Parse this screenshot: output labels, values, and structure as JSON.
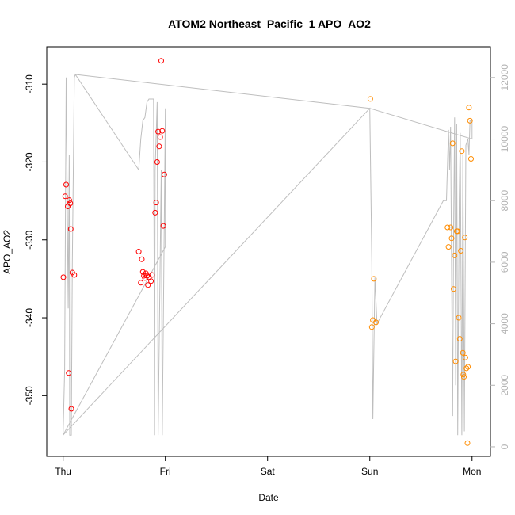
{
  "chart_data": {
    "type": "scatter",
    "title": "ATOM2 Northeast_Pacific_1 APO_AO2",
    "xlabel": "Date",
    "ylabel": "APO_AO2",
    "x_ticks": [
      "Thu",
      "Fri",
      "Sat",
      "Sun",
      "Mon"
    ],
    "x_tick_positions": [
      0,
      1,
      2,
      3,
      4
    ],
    "xlim": [
      -0.16,
      4.18
    ],
    "ylim": [
      -357.8,
      -305.2
    ],
    "y_ticks": [
      -350,
      -340,
      -330,
      -320,
      -310
    ],
    "y2_label": "",
    "y2_ticks": [
      0,
      2000,
      4000,
      6000,
      8000,
      10000,
      12000
    ],
    "y2lim": [
      -310,
      13000
    ],
    "grid": false,
    "colors": {
      "red": "#ff0000",
      "orange": "#ff8c00",
      "line": "#bebebe",
      "axis": "#000000",
      "right_axis": "#b3b3b3"
    },
    "series": [
      {
        "color": "#ff0000",
        "points": [
          [
            0.003,
            -334.8
          ],
          [
            0.02,
            -324.4
          ],
          [
            0.03,
            -322.9
          ],
          [
            0.045,
            -325.7
          ],
          [
            0.055,
            -347.1
          ],
          [
            0.06,
            -324.9
          ],
          [
            0.07,
            -325.3
          ],
          [
            0.075,
            -328.6
          ],
          [
            0.08,
            -351.7
          ],
          [
            0.09,
            -334.2
          ],
          [
            0.11,
            -334.5
          ],
          [
            0.74,
            -331.5
          ],
          [
            0.76,
            -335.5
          ],
          [
            0.77,
            -332.5
          ],
          [
            0.78,
            -334.1
          ],
          [
            0.79,
            -334.6
          ],
          [
            0.8,
            -334.9
          ],
          [
            0.81,
            -334.3
          ],
          [
            0.82,
            -334.6
          ],
          [
            0.83,
            -335.8
          ],
          [
            0.84,
            -334.8
          ],
          [
            0.86,
            -335.3
          ],
          [
            0.87,
            -334.5
          ],
          [
            0.9,
            -326.5
          ],
          [
            0.91,
            -325.2
          ],
          [
            0.92,
            -320.0
          ],
          [
            0.93,
            -316.1
          ],
          [
            0.94,
            -318.0
          ],
          [
            0.95,
            -316.8
          ],
          [
            0.96,
            -307.0
          ],
          [
            0.97,
            -316.0
          ],
          [
            0.98,
            -328.2
          ],
          [
            0.99,
            -321.6
          ]
        ]
      },
      {
        "color": "#ff8c00",
        "points": [
          [
            3.005,
            -311.9
          ],
          [
            3.02,
            -341.2
          ],
          [
            3.03,
            -340.3
          ],
          [
            3.04,
            -335.0
          ],
          [
            3.06,
            -340.6
          ],
          [
            3.76,
            -328.4
          ],
          [
            3.77,
            -330.9
          ],
          [
            3.79,
            -328.4
          ],
          [
            3.8,
            -329.8
          ],
          [
            3.81,
            -317.6
          ],
          [
            3.82,
            -336.3
          ],
          [
            3.83,
            -332.0
          ],
          [
            3.84,
            -345.6
          ],
          [
            3.85,
            -328.9
          ],
          [
            3.86,
            -328.9
          ],
          [
            3.87,
            -340.0
          ],
          [
            3.88,
            -342.7
          ],
          [
            3.89,
            -331.4
          ],
          [
            3.9,
            -318.6
          ],
          [
            3.91,
            -344.5
          ],
          [
            3.915,
            -347.3
          ],
          [
            3.92,
            -347.6
          ],
          [
            3.93,
            -329.7
          ],
          [
            3.935,
            -345.1
          ],
          [
            3.945,
            -346.5
          ],
          [
            3.955,
            -356.1
          ],
          [
            3.96,
            -346.3
          ],
          [
            3.97,
            -313.0
          ],
          [
            3.98,
            -314.7
          ],
          [
            3.99,
            -319.6
          ]
        ]
      }
    ],
    "line_series": {
      "color": "#bebebe",
      "axis": "right",
      "points": [
        [
          0.0,
          380
        ],
        [
          0.015,
          2500
        ],
        [
          0.03,
          12000
        ],
        [
          0.05,
          4500
        ],
        [
          0.06,
          9500
        ],
        [
          0.065,
          380
        ],
        [
          0.08,
          380
        ],
        [
          0.09,
          6000
        ],
        [
          0.11,
          12000
        ],
        [
          0.12,
          12100
        ],
        [
          0.74,
          9000
        ],
        [
          0.76,
          10000
        ],
        [
          0.78,
          10600
        ],
        [
          0.8,
          10700
        ],
        [
          0.82,
          11200
        ],
        [
          0.84,
          11300
        ],
        [
          0.86,
          11300
        ],
        [
          0.88,
          11300
        ],
        [
          0.885,
          11300
        ],
        [
          0.89,
          6000
        ],
        [
          0.895,
          380
        ],
        [
          0.9,
          9000
        ],
        [
          0.92,
          11200
        ],
        [
          0.93,
          380
        ],
        [
          0.96,
          9000
        ],
        [
          0.97,
          380
        ],
        [
          1.0,
          11000
        ],
        [
          1.0,
          6500
        ],
        [
          0.0,
          380
        ],
        [
          3.0,
          11000
        ],
        [
          3.02,
          6000
        ],
        [
          3.03,
          900
        ],
        [
          3.05,
          5500
        ],
        [
          3.07,
          4000
        ],
        [
          3.72,
          8000
        ],
        [
          3.75,
          8000
        ],
        [
          3.77,
          10300
        ],
        [
          3.78,
          9000
        ],
        [
          3.79,
          10400
        ],
        [
          3.81,
          1000
        ],
        [
          3.82,
          7000
        ],
        [
          3.83,
          10700
        ],
        [
          3.84,
          2000
        ],
        [
          3.85,
          10500
        ],
        [
          3.86,
          380
        ],
        [
          3.875,
          8000
        ],
        [
          3.885,
          10200
        ],
        [
          3.9,
          380
        ],
        [
          3.91,
          9500
        ],
        [
          3.925,
          500
        ],
        [
          3.94,
          9800
        ],
        [
          3.96,
          10000
        ],
        [
          3.97,
          9500
        ],
        [
          3.98,
          10600
        ],
        [
          4.0,
          10600
        ],
        [
          4.0,
          10000
        ],
        [
          3.0,
          11000
        ],
        [
          0.12,
          12100
        ]
      ]
    }
  }
}
